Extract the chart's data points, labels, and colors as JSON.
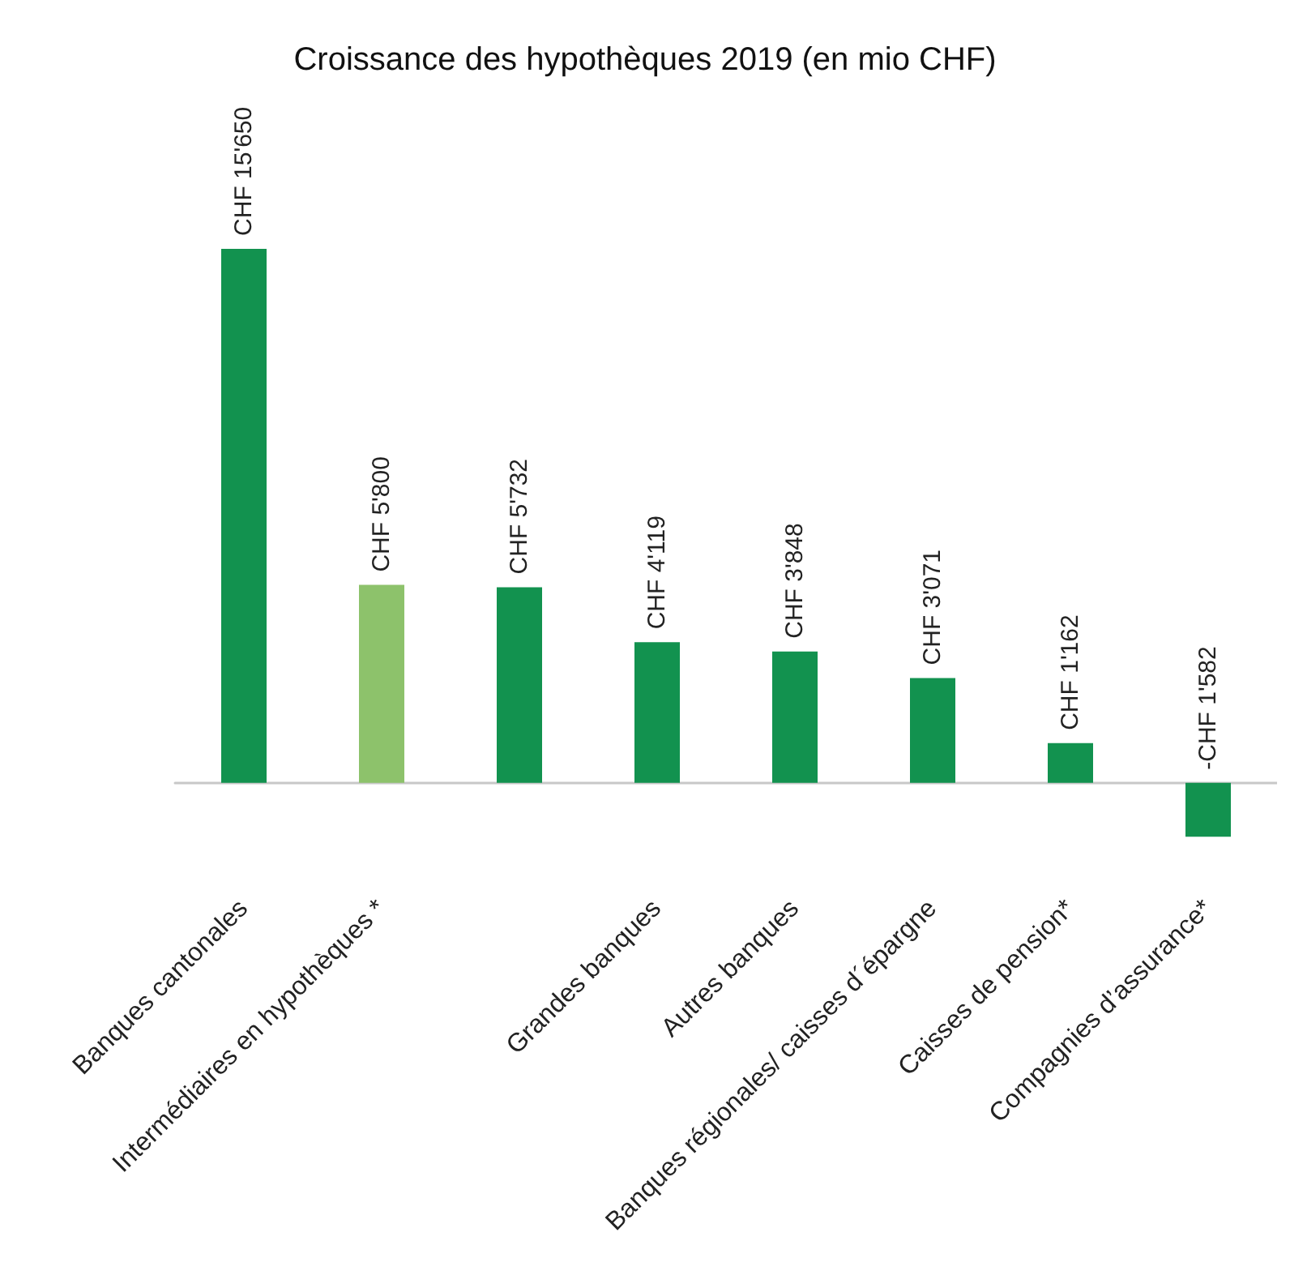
{
  "chart_data": {
    "type": "bar",
    "title": "Croissance des hypothèques 2019 (en mio CHF)",
    "categories": [
      "Banques cantonales",
      "Intermédiaires en hypothèques *",
      null,
      "Grandes banques",
      "Autres banques",
      "Banques régionales/ caisses d´épargne",
      "Caisses de pension*",
      "Compagnies d’assurance*"
    ],
    "values": [
      15650,
      5800,
      5732,
      4119,
      3848,
      3071,
      1162,
      -1582
    ],
    "colors": [
      "#12924f",
      "#8dc26b",
      "#12924f",
      "#12924f",
      "#12924f",
      "#12924f",
      "#12924f",
      "#12924f"
    ],
    "value_labels": [
      "CHF 15'650",
      "CHF 5'800",
      "CHF 5'732",
      "CHF 4'119",
      "CHF 3'848",
      "CHF 3'071",
      "CHF 1'162",
      "-CHF 1'582"
    ]
  }
}
